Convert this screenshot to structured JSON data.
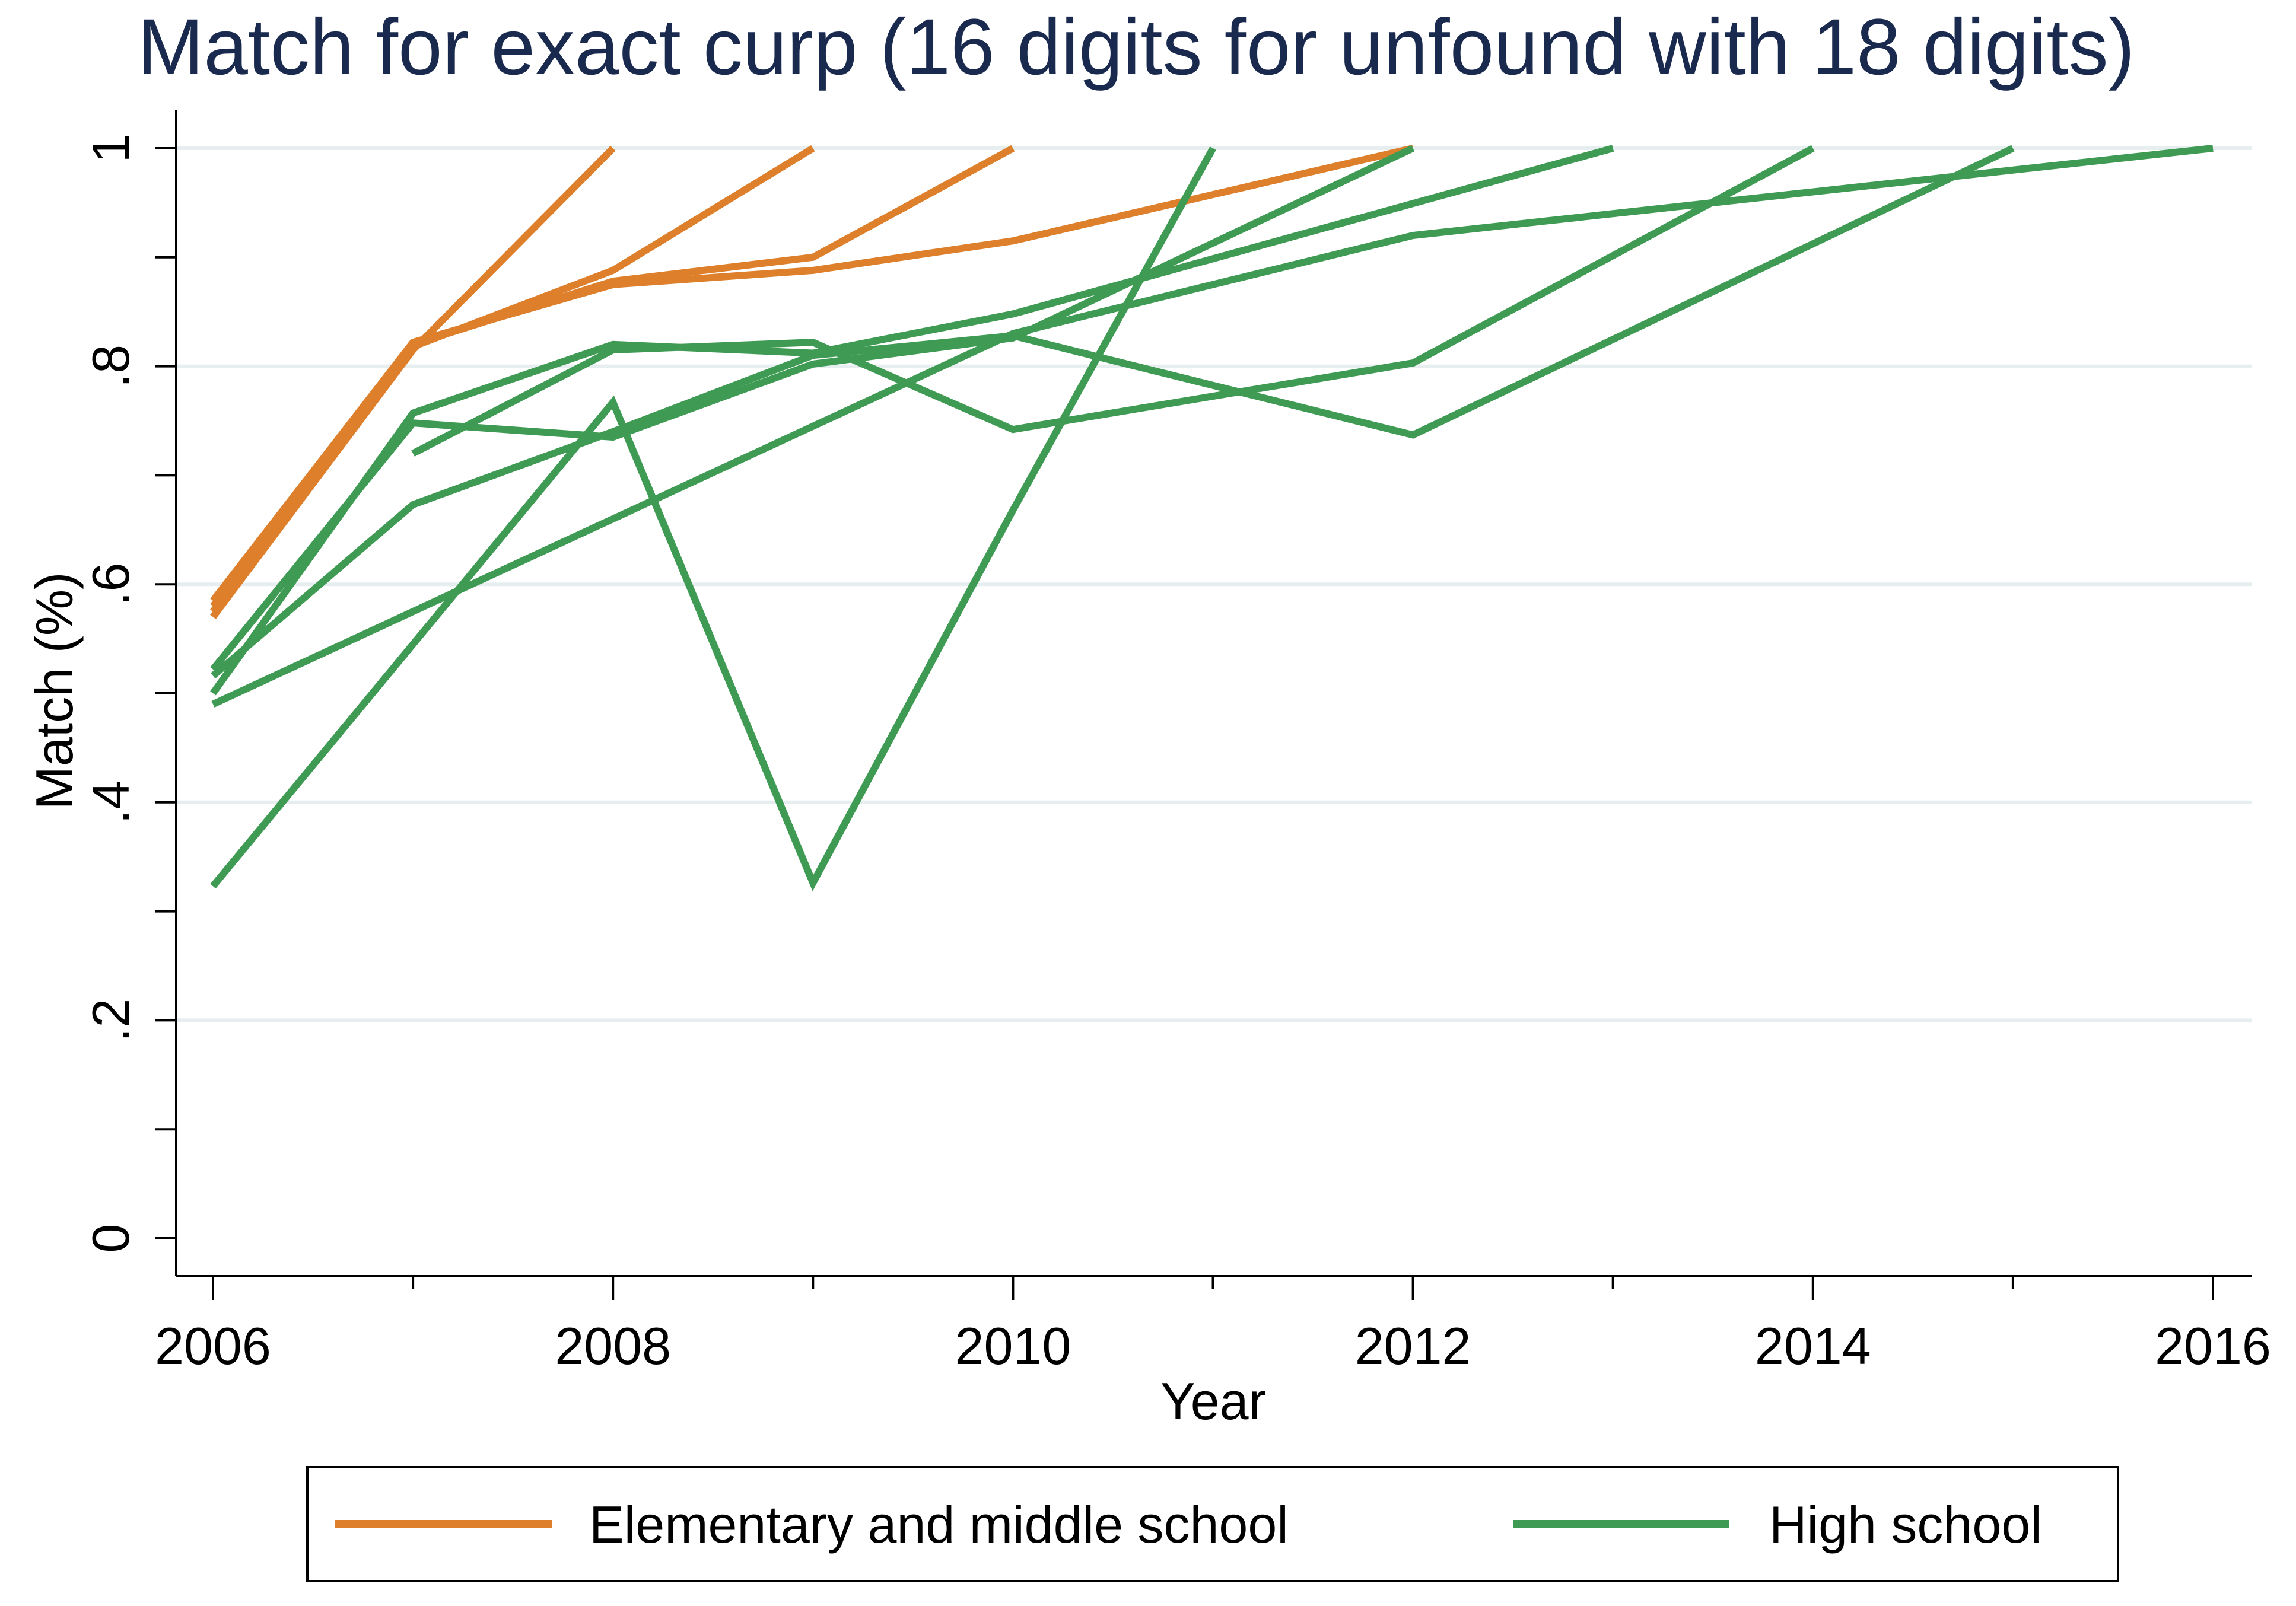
{
  "chart_data": {
    "type": "line",
    "title": "Match for exact curp (16 digits for unfound with 18 digits)",
    "xlabel": "Year",
    "ylabel": "Match (%)",
    "xlim": [
      2006,
      2016
    ],
    "ylim": [
      0,
      1
    ],
    "x_ticks": [
      "2006",
      "2008",
      "2010",
      "2012",
      "2014",
      "2016"
    ],
    "y_ticks": [
      "0",
      ".2",
      ".4",
      ".6",
      ".8",
      "1"
    ],
    "grid": true,
    "legend_position": "bottom",
    "colors": {
      "Elementary and middle school": "#dd7f2b",
      "High school": "#3f9b54",
      "title": "#1a2a4f",
      "grid": "#e7eef0",
      "axis": "#000000"
    },
    "legend": [
      "Elementary and middle school",
      "High school"
    ],
    "series": [
      {
        "group": "Elementary and middle school",
        "x": [
          2006,
          2007,
          2008
        ],
        "y": [
          0.57,
          0.815,
          1.0
        ]
      },
      {
        "group": "Elementary and middle school",
        "x": [
          2006,
          2007,
          2008,
          2009
        ],
        "y": [
          0.575,
          0.818,
          0.888,
          1.0
        ]
      },
      {
        "group": "Elementary and middle school",
        "x": [
          2006,
          2007,
          2008,
          2009,
          2010
        ],
        "y": [
          0.58,
          0.82,
          0.878,
          0.9,
          1.0
        ]
      },
      {
        "group": "Elementary and middle school",
        "x": [
          2006,
          2007,
          2008,
          2009,
          2010,
          2012
        ],
        "y": [
          0.585,
          0.822,
          0.875,
          0.888,
          0.915,
          1.0
        ]
      },
      {
        "group": "High school",
        "x": [
          2006,
          2007,
          2008,
          2009,
          2010,
          2011
        ],
        "y": [
          0.323,
          0.545,
          0.767,
          0.326,
          0.668,
          1.0
        ]
      },
      {
        "group": "High school",
        "x": [
          2006,
          2007,
          2008,
          2009,
          2010,
          2012
        ],
        "y": [
          0.522,
          0.748,
          0.735,
          0.802,
          0.826,
          1.0
        ]
      },
      {
        "group": "High school",
        "x": [
          2006,
          2007,
          2008,
          2009,
          2010,
          2013
        ],
        "y": [
          0.5,
          0.757,
          0.82,
          0.812,
          0.848,
          1.0
        ]
      },
      {
        "group": "High school",
        "x": [
          2007,
          2008,
          2009,
          2010,
          2012,
          2014
        ],
        "y": [
          0.72,
          0.815,
          0.822,
          0.742,
          0.803,
          1.0
        ]
      },
      {
        "group": "High school",
        "x": [
          2006,
          2007,
          2008,
          2009,
          2010,
          2012,
          2015
        ],
        "y": [
          0.516,
          0.673,
          0.74,
          0.81,
          0.828,
          0.737,
          1.0
        ]
      },
      {
        "group": "High school",
        "x": [
          2006,
          2008,
          2010,
          2012,
          2016
        ],
        "y": [
          0.49,
          0.66,
          0.83,
          0.92,
          1.0
        ]
      }
    ]
  }
}
